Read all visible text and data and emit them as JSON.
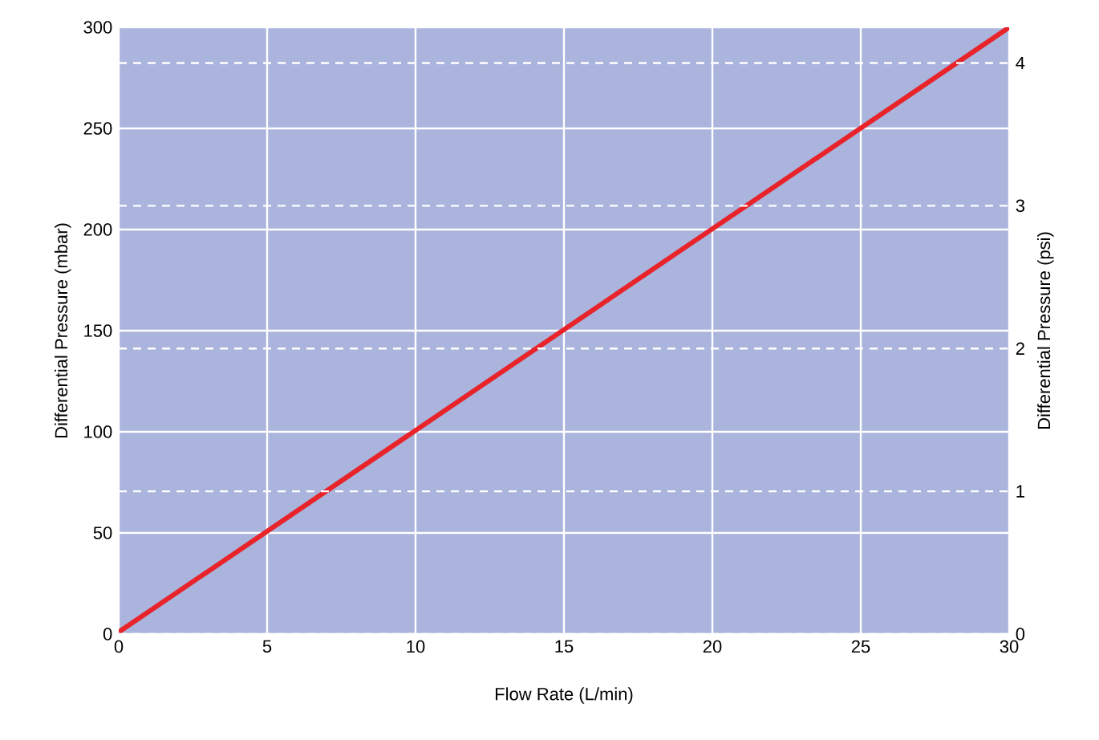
{
  "chart_data": {
    "type": "line",
    "xlabel": "Flow Rate (L/min)",
    "ylabel": "Differential Pressure (mbar)",
    "y2label": "Differential Pressure (psi)",
    "x": [
      0,
      30
    ],
    "series": [
      {
        "color": "#e8232a",
        "values": [
          1,
          300
        ]
      }
    ],
    "xlim": [
      0,
      30
    ],
    "xticks": [
      0,
      5,
      10,
      15,
      20,
      25,
      30
    ],
    "ylim": [
      0,
      300
    ],
    "yticks": [
      0,
      50,
      100,
      150,
      200,
      250,
      300
    ],
    "y2lim": [
      0,
      4.25
    ],
    "y2ticks": [
      0,
      1,
      2,
      3,
      4
    ],
    "grid": true,
    "marker": "none",
    "line_style": "solid"
  }
}
